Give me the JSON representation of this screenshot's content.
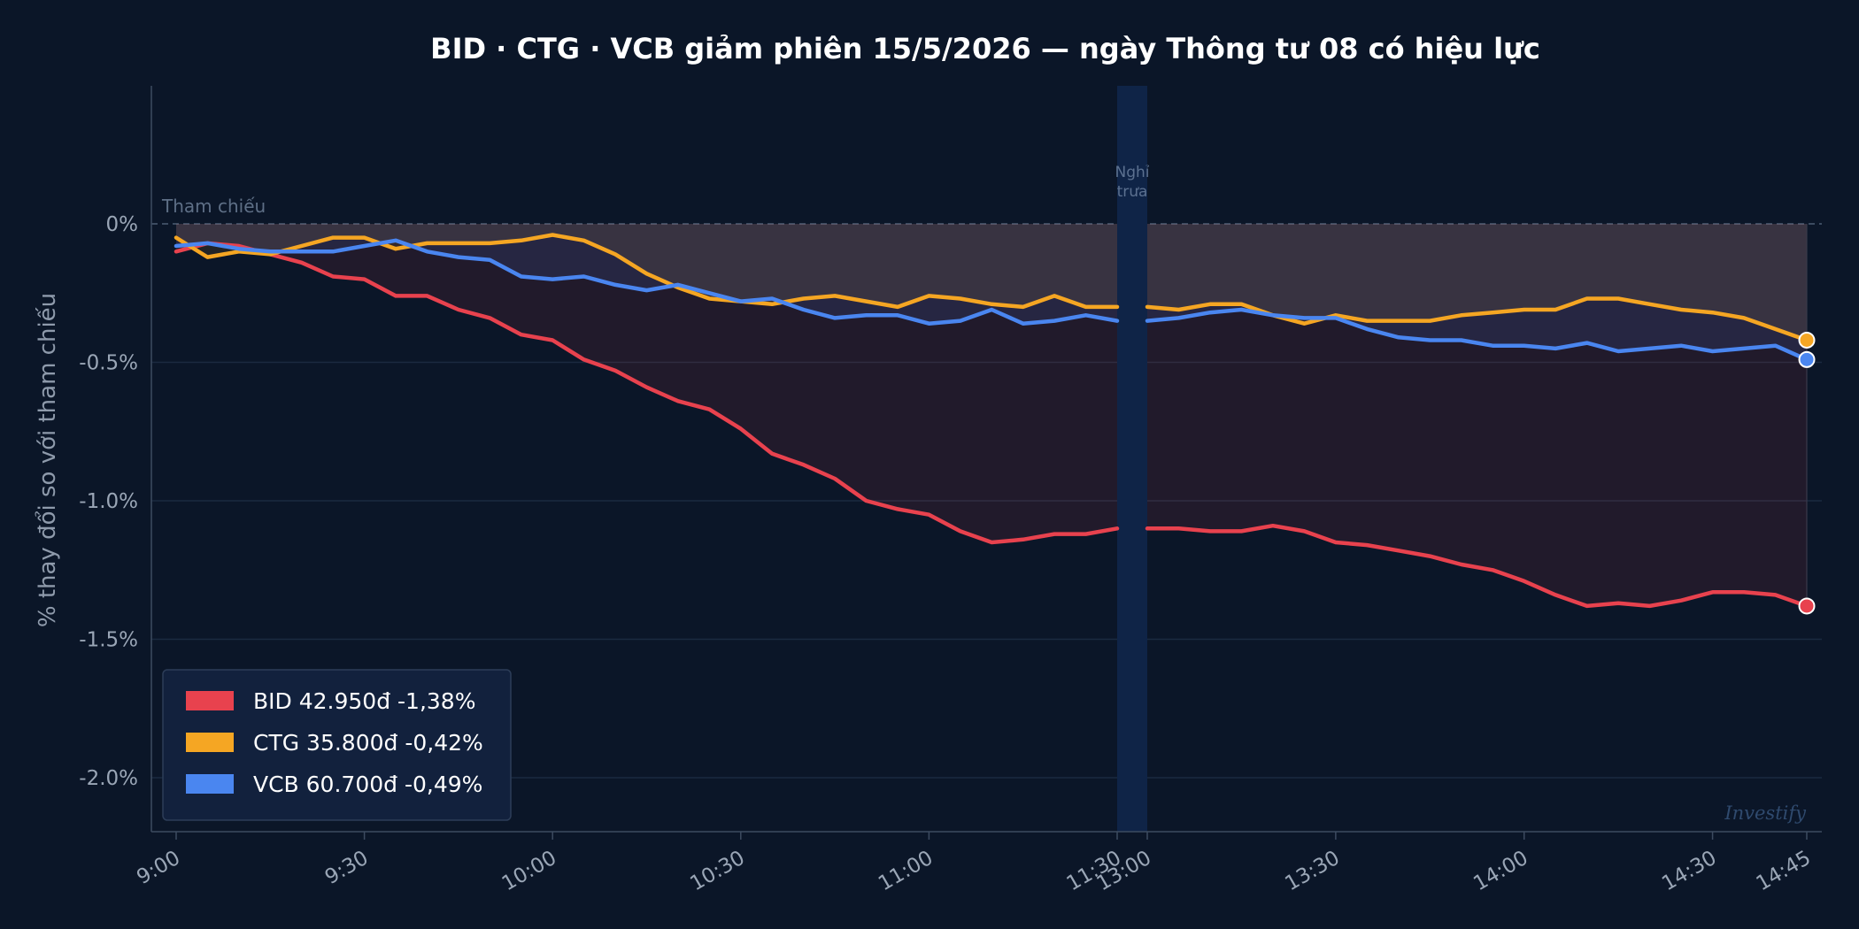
{
  "chart_data": {
    "type": "line",
    "title": "BID · CTG · VCB giảm phiên 15/5/2026 — ngày Thông tư 08 có hiệu lực",
    "ylabel": "% thay đổi so với tham chiếu",
    "ylim": [
      -2.2,
      0.5
    ],
    "yticks": [
      0,
      -0.5,
      -1.0,
      -1.5,
      -2.0
    ],
    "ytick_labels": [
      "0%",
      "-0.5%",
      "-1.0%",
      "-1.5%",
      "-2.0%"
    ],
    "xtick_labels": [
      "9:00",
      "9:30",
      "10:00",
      "10:30",
      "11:00",
      "11:30",
      "13:00",
      "13:30",
      "14:00",
      "14:30",
      "14:45"
    ],
    "reference_label": "Tham chiếu",
    "break_label": [
      "Nghỉ",
      "trưa"
    ],
    "watermark": "Investify",
    "legend_position": "bottom-left",
    "grid": true,
    "morning_x": [
      "9:00",
      "9:05",
      "9:10",
      "9:15",
      "9:20",
      "9:25",
      "9:30",
      "9:35",
      "9:40",
      "9:45",
      "9:50",
      "9:55",
      "10:00",
      "10:05",
      "10:10",
      "10:15",
      "10:20",
      "10:25",
      "10:30",
      "10:35",
      "10:40",
      "10:45",
      "10:50",
      "10:55",
      "11:00",
      "11:05",
      "11:10",
      "11:15",
      "11:20",
      "11:25",
      "11:30"
    ],
    "afternoon_x": [
      "13:00",
      "13:05",
      "13:10",
      "13:15",
      "13:20",
      "13:25",
      "13:30",
      "13:35",
      "13:40",
      "13:45",
      "13:50",
      "13:55",
      "14:00",
      "14:05",
      "14:10",
      "14:15",
      "14:20",
      "14:25",
      "14:30",
      "14:35",
      "14:40",
      "14:45"
    ],
    "series": [
      {
        "name": "BID",
        "color": "#e8424e",
        "legend": "BID  42.950đ  -1,38%",
        "morning": [
          -0.1,
          -0.07,
          -0.08,
          -0.11,
          -0.14,
          -0.19,
          -0.2,
          -0.26,
          -0.26,
          -0.31,
          -0.34,
          -0.4,
          -0.42,
          -0.49,
          -0.53,
          -0.59,
          -0.64,
          -0.67,
          -0.74,
          -0.83,
          -0.87,
          -0.92,
          -1.0,
          -1.03,
          -1.05,
          -1.11,
          -1.15,
          -1.14,
          -1.12,
          -1.12,
          -1.1
        ],
        "afternoon": [
          -1.1,
          -1.1,
          -1.11,
          -1.11,
          -1.09,
          -1.11,
          -1.15,
          -1.16,
          -1.18,
          -1.2,
          -1.23,
          -1.25,
          -1.29,
          -1.34,
          -1.38,
          -1.37,
          -1.38,
          -1.36,
          -1.33,
          -1.33,
          -1.34,
          -1.38
        ]
      },
      {
        "name": "CTG",
        "color": "#f5a623",
        "legend": "CTG  35.800đ  -0,42%",
        "morning": [
          -0.05,
          -0.12,
          -0.1,
          -0.11,
          -0.08,
          -0.05,
          -0.05,
          -0.09,
          -0.07,
          -0.07,
          -0.07,
          -0.06,
          -0.04,
          -0.06,
          -0.11,
          -0.18,
          -0.23,
          -0.27,
          -0.28,
          -0.29,
          -0.27,
          -0.26,
          -0.28,
          -0.3,
          -0.26,
          -0.27,
          -0.29,
          -0.3,
          -0.26,
          -0.3,
          -0.3
        ],
        "afternoon": [
          -0.3,
          -0.31,
          -0.29,
          -0.29,
          -0.33,
          -0.36,
          -0.33,
          -0.35,
          -0.35,
          -0.35,
          -0.33,
          -0.32,
          -0.31,
          -0.31,
          -0.27,
          -0.27,
          -0.29,
          -0.31,
          -0.32,
          -0.34,
          -0.38,
          -0.42
        ]
      },
      {
        "name": "VCB",
        "color": "#4a86f0",
        "legend": "VCB  60.700đ  -0,49%",
        "morning": [
          -0.08,
          -0.07,
          -0.09,
          -0.1,
          -0.1,
          -0.1,
          -0.08,
          -0.06,
          -0.1,
          -0.12,
          -0.13,
          -0.19,
          -0.2,
          -0.19,
          -0.22,
          -0.24,
          -0.22,
          -0.25,
          -0.28,
          -0.27,
          -0.31,
          -0.34,
          -0.33,
          -0.33,
          -0.36,
          -0.35,
          -0.31,
          -0.36,
          -0.35,
          -0.33,
          -0.35
        ],
        "afternoon": [
          -0.35,
          -0.34,
          -0.32,
          -0.31,
          -0.33,
          -0.34,
          -0.34,
          -0.38,
          -0.41,
          -0.42,
          -0.42,
          -0.44,
          -0.44,
          -0.45,
          -0.43,
          -0.46,
          -0.45,
          -0.44,
          -0.46,
          -0.45,
          -0.44,
          -0.49
        ]
      }
    ]
  }
}
